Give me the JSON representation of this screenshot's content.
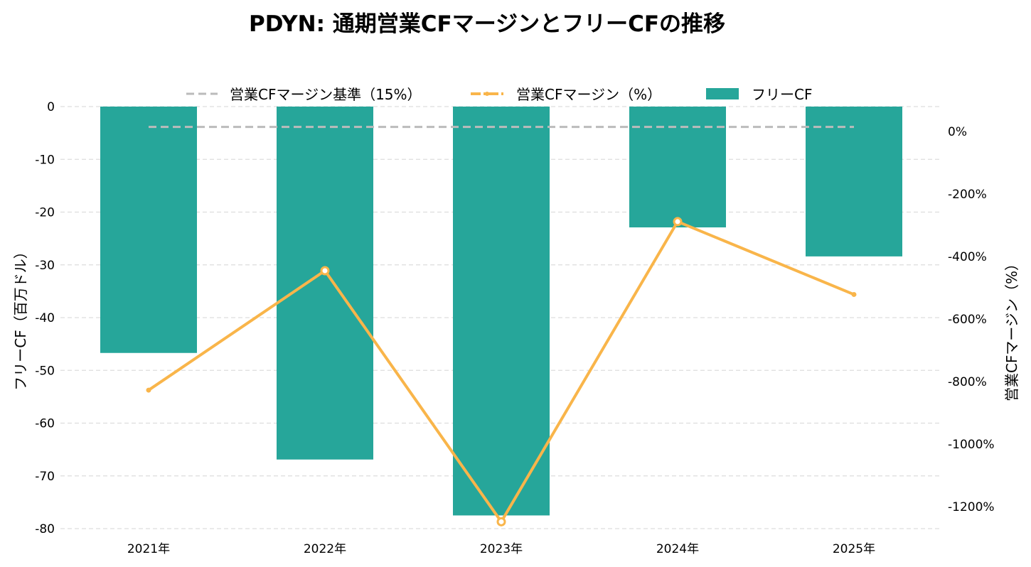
{
  "chart_data": {
    "type": "bar",
    "title": "PDYN: 通期営業CFマージンとフリーCFの推移",
    "categories": [
      "2021年",
      "2022年",
      "2023年",
      "2024年",
      "2025年"
    ],
    "series": [
      {
        "name": "フリーCF",
        "type": "bar",
        "axis": "left",
        "color": "#26a69a",
        "values": [
          -46.7,
          -66.9,
          -77.5,
          -22.9,
          -28.4
        ]
      },
      {
        "name": "営業CFマージン（%）",
        "type": "line",
        "axis": "right",
        "color": "#f9b54a",
        "values": [
          -827,
          -445,
          -1248,
          -288,
          -521
        ]
      },
      {
        "name": "営業CFマージン基準（15%）",
        "type": "line",
        "axis": "right",
        "style": "dashed",
        "color": "#bbbbbb",
        "values": [
          15,
          15,
          15,
          15,
          15
        ]
      }
    ],
    "ylabel": "フリーCF（百万ドル）",
    "ylabel_right": "営業CFマージン（%）",
    "ylim": [
      -80,
      0
    ],
    "ylim_right": [
      -1270,
      80
    ],
    "yticks": [
      0,
      -10,
      -20,
      -30,
      -40,
      -50,
      -60,
      -70,
      -80
    ],
    "yticks_right": [
      0,
      -200,
      -400,
      -600,
      -800,
      -1000,
      -1200
    ],
    "ytick_labels": [
      "0",
      "-10",
      "-20",
      "-30",
      "-40",
      "-50",
      "-60",
      "-70",
      "-80"
    ],
    "ytick_labels_right": [
      "0%",
      "-200%",
      "-400%",
      "-600%",
      "-800%",
      "-1000%",
      "-1200%"
    ],
    "grid": true,
    "legend_position": "top-center"
  }
}
